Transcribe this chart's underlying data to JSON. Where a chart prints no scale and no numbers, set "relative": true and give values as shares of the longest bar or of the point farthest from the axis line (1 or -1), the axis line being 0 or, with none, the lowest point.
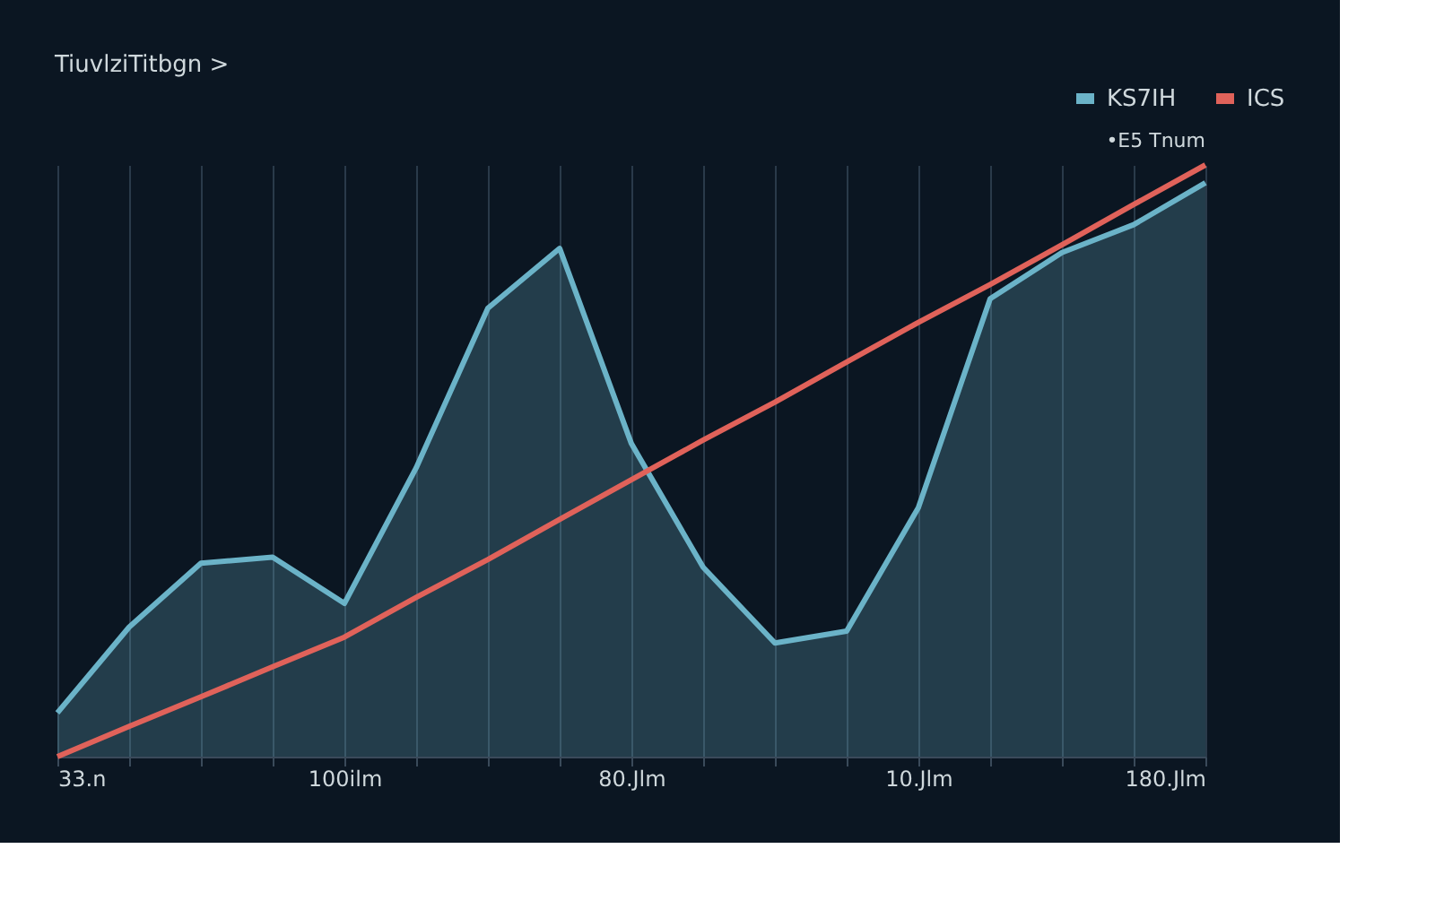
{
  "chart_data": {
    "type": "line",
    "title": "TiuvlziTitbgn >",
    "relative": true,
    "categories": [
      "33.n",
      null,
      null,
      null,
      "100ilm",
      null,
      null,
      null,
      "80.Jlm",
      null,
      null,
      null,
      "10.Jlm",
      null,
      null,
      null,
      "180.Jlm"
    ],
    "series": [
      {
        "name": "KS7IH",
        "type": "area",
        "color": "#6bb3c8",
        "values": [
          0.074,
          0.219,
          0.327,
          0.337,
          0.259,
          0.488,
          0.758,
          0.859,
          0.529,
          0.32,
          0.192,
          0.212,
          0.421,
          0.774,
          0.852,
          0.899,
          0.97
        ]
      },
      {
        "name": "ICS",
        "color": "#e0625a",
        "values": [
          0,
          0.051,
          0.101,
          0.152,
          0.202,
          0.269,
          0.333,
          0.401,
          0.468,
          0.535,
          0.599,
          0.667,
          0.734,
          0.798,
          0.865,
          0.933,
          1
        ]
      }
    ],
    "annotations": [
      "•E5 Tnum"
    ],
    "grid": "x",
    "legend": "top right",
    "line_style": "solid"
  }
}
